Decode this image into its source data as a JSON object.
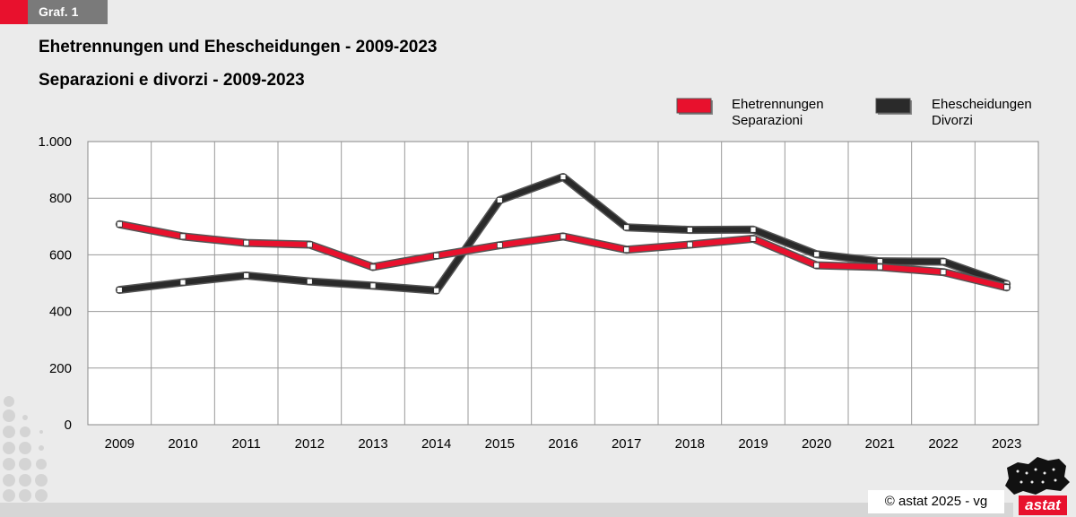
{
  "graph_tag": "Graf. 1",
  "title_de": "Ehetrennungen und Ehescheidungen - 2009-2023",
  "title_it": "Separazioni e divorzi - 2009-2023",
  "copyright": "© astat 2025 - vg",
  "logo_text": "astat",
  "colors": {
    "separations": "#e8112d",
    "divorces": "#2a2a2a",
    "accent": "#e8112d"
  },
  "chart_data": {
    "type": "line",
    "categories": [
      "2009",
      "2010",
      "2011",
      "2012",
      "2013",
      "2014",
      "2015",
      "2016",
      "2017",
      "2018",
      "2019",
      "2020",
      "2021",
      "2022",
      "2023"
    ],
    "series": [
      {
        "name": "Ehetrennungen",
        "name2": "Separazioni",
        "values": [
          708,
          665,
          642,
          636,
          557,
          597,
          634,
          665,
          618,
          636,
          657,
          563,
          557,
          539,
          485
        ]
      },
      {
        "name": "Ehescheidungen",
        "name2": "Divorzi",
        "values": [
          476,
          503,
          527,
          506,
          491,
          474,
          793,
          875,
          697,
          688,
          689,
          602,
          577,
          576,
          497
        ]
      }
    ],
    "ylim": [
      0,
      1000
    ],
    "yticks": [
      0,
      200,
      400,
      600,
      800,
      1000
    ],
    "ytick_labels": [
      "0",
      "200",
      "400",
      "600",
      "800",
      "1.000"
    ],
    "grid": true,
    "legend": "top-right"
  }
}
